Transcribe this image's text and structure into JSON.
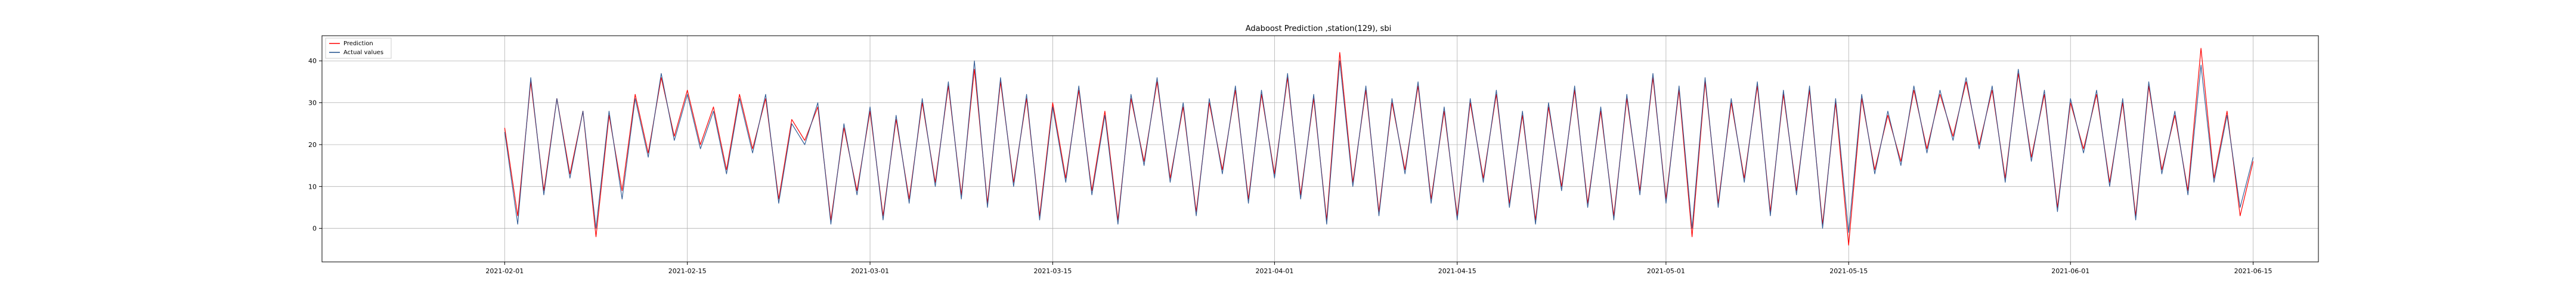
{
  "chart_data": {
    "type": "line",
    "title": "Adaboost Prediction ,station(129), sbi",
    "xlabel": "",
    "ylabel": "",
    "x_axis": {
      "type": "date",
      "range": [
        "2021-01-18",
        "2021-06-20"
      ],
      "ticks": [
        "2021-02-01",
        "2021-02-15",
        "2021-03-01",
        "2021-03-15",
        "2021-04-01",
        "2021-04-15",
        "2021-05-01",
        "2021-05-15",
        "2021-06-01",
        "2021-06-15"
      ]
    },
    "y_axis": {
      "range": [
        -8,
        46
      ],
      "ticks": [
        0,
        10,
        20,
        30,
        40
      ]
    },
    "grid": true,
    "legend": {
      "placement": "top-left"
    },
    "series": [
      {
        "name": "Prediction",
        "color": "#ff0000",
        "points": [
          [
            "2021-02-01",
            24
          ],
          [
            "2021-02-02",
            3
          ],
          [
            "2021-02-03",
            35
          ],
          [
            "2021-02-04",
            9
          ],
          [
            "2021-02-05",
            31
          ],
          [
            "2021-02-06",
            13
          ],
          [
            "2021-02-07",
            28
          ],
          [
            "2021-02-08",
            -2
          ],
          [
            "2021-02-09",
            27
          ],
          [
            "2021-02-10",
            9
          ],
          [
            "2021-02-11",
            32
          ],
          [
            "2021-02-12",
            18
          ],
          [
            "2021-02-13",
            36
          ],
          [
            "2021-02-14",
            22
          ],
          [
            "2021-02-15",
            33
          ],
          [
            "2021-02-16",
            20
          ],
          [
            "2021-02-17",
            29
          ],
          [
            "2021-02-18",
            14
          ],
          [
            "2021-02-19",
            32
          ],
          [
            "2021-02-20",
            19
          ],
          [
            "2021-02-21",
            31
          ],
          [
            "2021-02-22",
            7
          ],
          [
            "2021-02-23",
            26
          ],
          [
            "2021-02-24",
            21
          ],
          [
            "2021-02-25",
            29
          ],
          [
            "2021-02-26",
            2
          ],
          [
            "2021-02-27",
            24
          ],
          [
            "2021-02-28",
            9
          ],
          [
            "2021-03-01",
            28
          ],
          [
            "2021-03-02",
            3
          ],
          [
            "2021-03-03",
            26
          ],
          [
            "2021-03-04",
            7
          ],
          [
            "2021-03-05",
            30
          ],
          [
            "2021-03-06",
            11
          ],
          [
            "2021-03-07",
            34
          ],
          [
            "2021-03-08",
            8
          ],
          [
            "2021-03-09",
            38
          ],
          [
            "2021-03-10",
            6
          ],
          [
            "2021-03-11",
            35
          ],
          [
            "2021-03-12",
            11
          ],
          [
            "2021-03-13",
            31
          ],
          [
            "2021-03-14",
            3
          ],
          [
            "2021-03-15",
            30
          ],
          [
            "2021-03-16",
            12
          ],
          [
            "2021-03-17",
            33
          ],
          [
            "2021-03-18",
            9
          ],
          [
            "2021-03-19",
            28
          ],
          [
            "2021-03-20",
            2
          ],
          [
            "2021-03-21",
            31
          ],
          [
            "2021-03-22",
            16
          ],
          [
            "2021-03-23",
            35
          ],
          [
            "2021-03-24",
            12
          ],
          [
            "2021-03-25",
            29
          ],
          [
            "2021-03-26",
            4
          ],
          [
            "2021-03-27",
            30
          ],
          [
            "2021-03-28",
            14
          ],
          [
            "2021-03-29",
            33
          ],
          [
            "2021-03-30",
            7
          ],
          [
            "2021-03-31",
            32
          ],
          [
            "2021-04-01",
            13
          ],
          [
            "2021-04-02",
            36
          ],
          [
            "2021-04-03",
            8
          ],
          [
            "2021-04-04",
            31
          ],
          [
            "2021-04-05",
            2
          ],
          [
            "2021-04-06",
            42
          ],
          [
            "2021-04-07",
            11
          ],
          [
            "2021-04-08",
            33
          ],
          [
            "2021-04-09",
            4
          ],
          [
            "2021-04-10",
            30
          ],
          [
            "2021-04-11",
            14
          ],
          [
            "2021-04-12",
            34
          ],
          [
            "2021-04-13",
            7
          ],
          [
            "2021-04-14",
            28
          ],
          [
            "2021-04-15",
            3
          ],
          [
            "2021-04-16",
            30
          ],
          [
            "2021-04-17",
            12
          ],
          [
            "2021-04-18",
            32
          ],
          [
            "2021-04-19",
            6
          ],
          [
            "2021-04-20",
            27
          ],
          [
            "2021-04-21",
            2
          ],
          [
            "2021-04-22",
            29
          ],
          [
            "2021-04-23",
            10
          ],
          [
            "2021-04-24",
            33
          ],
          [
            "2021-04-25",
            6
          ],
          [
            "2021-04-26",
            28
          ],
          [
            "2021-04-27",
            3
          ],
          [
            "2021-04-28",
            31
          ],
          [
            "2021-04-29",
            9
          ],
          [
            "2021-04-30",
            36
          ],
          [
            "2021-05-01",
            7
          ],
          [
            "2021-05-02",
            33
          ],
          [
            "2021-05-03",
            -2
          ],
          [
            "2021-05-04",
            35
          ],
          [
            "2021-05-05",
            6
          ],
          [
            "2021-05-06",
            30
          ],
          [
            "2021-05-07",
            12
          ],
          [
            "2021-05-08",
            34
          ],
          [
            "2021-05-09",
            4
          ],
          [
            "2021-05-10",
            32
          ],
          [
            "2021-05-11",
            9
          ],
          [
            "2021-05-12",
            33
          ],
          [
            "2021-05-13",
            1
          ],
          [
            "2021-05-14",
            30
          ],
          [
            "2021-05-15",
            -4
          ],
          [
            "2021-05-16",
            31
          ],
          [
            "2021-05-17",
            14
          ],
          [
            "2021-05-18",
            27
          ],
          [
            "2021-05-19",
            16
          ],
          [
            "2021-05-20",
            33
          ],
          [
            "2021-05-21",
            19
          ],
          [
            "2021-05-22",
            32
          ],
          [
            "2021-05-23",
            22
          ],
          [
            "2021-05-24",
            35
          ],
          [
            "2021-05-25",
            20
          ],
          [
            "2021-05-26",
            33
          ],
          [
            "2021-05-27",
            12
          ],
          [
            "2021-05-28",
            37
          ],
          [
            "2021-05-29",
            17
          ],
          [
            "2021-05-30",
            32
          ],
          [
            "2021-05-31",
            5
          ],
          [
            "2021-06-01",
            30
          ],
          [
            "2021-06-02",
            19
          ],
          [
            "2021-06-03",
            32
          ],
          [
            "2021-06-04",
            11
          ],
          [
            "2021-06-05",
            30
          ],
          [
            "2021-06-06",
            3
          ],
          [
            "2021-06-07",
            34
          ],
          [
            "2021-06-08",
            14
          ],
          [
            "2021-06-09",
            27
          ],
          [
            "2021-06-10",
            9
          ],
          [
            "2021-06-11",
            43
          ],
          [
            "2021-06-12",
            12
          ],
          [
            "2021-06-13",
            28
          ],
          [
            "2021-06-14",
            3
          ],
          [
            "2021-06-15",
            16
          ]
        ]
      },
      {
        "name": "Actual values",
        "color": "#1f4e8c",
        "points": [
          [
            "2021-02-01",
            23
          ],
          [
            "2021-02-02",
            1
          ],
          [
            "2021-02-03",
            36
          ],
          [
            "2021-02-04",
            8
          ],
          [
            "2021-02-05",
            31
          ],
          [
            "2021-02-06",
            12
          ],
          [
            "2021-02-07",
            28
          ],
          [
            "2021-02-08",
            0
          ],
          [
            "2021-02-09",
            28
          ],
          [
            "2021-02-10",
            7
          ],
          [
            "2021-02-11",
            31
          ],
          [
            "2021-02-12",
            17
          ],
          [
            "2021-02-13",
            37
          ],
          [
            "2021-02-14",
            21
          ],
          [
            "2021-02-15",
            32
          ],
          [
            "2021-02-16",
            19
          ],
          [
            "2021-02-17",
            28
          ],
          [
            "2021-02-18",
            13
          ],
          [
            "2021-02-19",
            31
          ],
          [
            "2021-02-20",
            18
          ],
          [
            "2021-02-21",
            32
          ],
          [
            "2021-02-22",
            6
          ],
          [
            "2021-02-23",
            25
          ],
          [
            "2021-02-24",
            20
          ],
          [
            "2021-02-25",
            30
          ],
          [
            "2021-02-26",
            1
          ],
          [
            "2021-02-27",
            25
          ],
          [
            "2021-02-28",
            8
          ],
          [
            "2021-03-01",
            29
          ],
          [
            "2021-03-02",
            2
          ],
          [
            "2021-03-03",
            27
          ],
          [
            "2021-03-04",
            6
          ],
          [
            "2021-03-05",
            31
          ],
          [
            "2021-03-06",
            10
          ],
          [
            "2021-03-07",
            35
          ],
          [
            "2021-03-08",
            7
          ],
          [
            "2021-03-09",
            40
          ],
          [
            "2021-03-10",
            5
          ],
          [
            "2021-03-11",
            36
          ],
          [
            "2021-03-12",
            10
          ],
          [
            "2021-03-13",
            32
          ],
          [
            "2021-03-14",
            2
          ],
          [
            "2021-03-15",
            29
          ],
          [
            "2021-03-16",
            11
          ],
          [
            "2021-03-17",
            34
          ],
          [
            "2021-03-18",
            8
          ],
          [
            "2021-03-19",
            27
          ],
          [
            "2021-03-20",
            1
          ],
          [
            "2021-03-21",
            32
          ],
          [
            "2021-03-22",
            15
          ],
          [
            "2021-03-23",
            36
          ],
          [
            "2021-03-24",
            11
          ],
          [
            "2021-03-25",
            30
          ],
          [
            "2021-03-26",
            3
          ],
          [
            "2021-03-27",
            31
          ],
          [
            "2021-03-28",
            13
          ],
          [
            "2021-03-29",
            34
          ],
          [
            "2021-03-30",
            6
          ],
          [
            "2021-03-31",
            33
          ],
          [
            "2021-04-01",
            12
          ],
          [
            "2021-04-02",
            37
          ],
          [
            "2021-04-03",
            7
          ],
          [
            "2021-04-04",
            32
          ],
          [
            "2021-04-05",
            1
          ],
          [
            "2021-04-06",
            40
          ],
          [
            "2021-04-07",
            10
          ],
          [
            "2021-04-08",
            34
          ],
          [
            "2021-04-09",
            3
          ],
          [
            "2021-04-10",
            31
          ],
          [
            "2021-04-11",
            13
          ],
          [
            "2021-04-12",
            35
          ],
          [
            "2021-04-13",
            6
          ],
          [
            "2021-04-14",
            29
          ],
          [
            "2021-04-15",
            2
          ],
          [
            "2021-04-16",
            31
          ],
          [
            "2021-04-17",
            11
          ],
          [
            "2021-04-18",
            33
          ],
          [
            "2021-04-19",
            5
          ],
          [
            "2021-04-20",
            28
          ],
          [
            "2021-04-21",
            1
          ],
          [
            "2021-04-22",
            30
          ],
          [
            "2021-04-23",
            9
          ],
          [
            "2021-04-24",
            34
          ],
          [
            "2021-04-25",
            5
          ],
          [
            "2021-04-26",
            29
          ],
          [
            "2021-04-27",
            2
          ],
          [
            "2021-04-28",
            32
          ],
          [
            "2021-04-29",
            8
          ],
          [
            "2021-04-30",
            37
          ],
          [
            "2021-05-01",
            6
          ],
          [
            "2021-05-02",
            34
          ],
          [
            "2021-05-03",
            0
          ],
          [
            "2021-05-04",
            36
          ],
          [
            "2021-05-05",
            5
          ],
          [
            "2021-05-06",
            31
          ],
          [
            "2021-05-07",
            11
          ],
          [
            "2021-05-08",
            35
          ],
          [
            "2021-05-09",
            3
          ],
          [
            "2021-05-10",
            33
          ],
          [
            "2021-05-11",
            8
          ],
          [
            "2021-05-12",
            34
          ],
          [
            "2021-05-13",
            0
          ],
          [
            "2021-05-14",
            31
          ],
          [
            "2021-05-15",
            -1
          ],
          [
            "2021-05-16",
            32
          ],
          [
            "2021-05-17",
            13
          ],
          [
            "2021-05-18",
            28
          ],
          [
            "2021-05-19",
            15
          ],
          [
            "2021-05-20",
            34
          ],
          [
            "2021-05-21",
            18
          ],
          [
            "2021-05-22",
            33
          ],
          [
            "2021-05-23",
            21
          ],
          [
            "2021-05-24",
            36
          ],
          [
            "2021-05-25",
            19
          ],
          [
            "2021-05-26",
            34
          ],
          [
            "2021-05-27",
            11
          ],
          [
            "2021-05-28",
            38
          ],
          [
            "2021-05-29",
            16
          ],
          [
            "2021-05-30",
            33
          ],
          [
            "2021-05-31",
            4
          ],
          [
            "2021-06-01",
            31
          ],
          [
            "2021-06-02",
            18
          ],
          [
            "2021-06-03",
            33
          ],
          [
            "2021-06-04",
            10
          ],
          [
            "2021-06-05",
            31
          ],
          [
            "2021-06-06",
            2
          ],
          [
            "2021-06-07",
            35
          ],
          [
            "2021-06-08",
            13
          ],
          [
            "2021-06-09",
            28
          ],
          [
            "2021-06-10",
            8
          ],
          [
            "2021-06-11",
            39
          ],
          [
            "2021-06-12",
            11
          ],
          [
            "2021-06-13",
            27
          ],
          [
            "2021-06-14",
            5
          ],
          [
            "2021-06-15",
            17
          ]
        ]
      }
    ]
  }
}
